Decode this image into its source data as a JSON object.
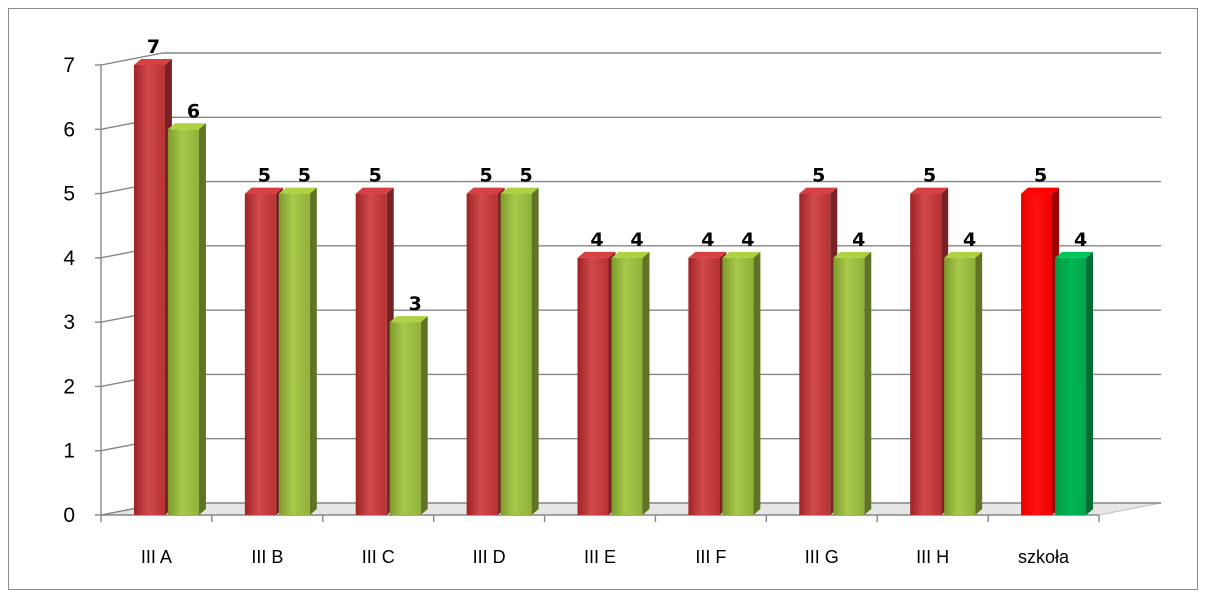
{
  "chart_data": {
    "type": "bar",
    "title": "",
    "xlabel": "",
    "ylabel": "",
    "ylim": [
      0,
      7
    ],
    "yticks": [
      "0",
      "1",
      "2",
      "3",
      "4",
      "5",
      "6",
      "7"
    ],
    "grid": true,
    "legend": "none",
    "three_d": true,
    "categories": [
      "III A",
      "III B",
      "III C",
      "III D",
      "III E",
      "III F",
      "III G",
      "III H",
      "szkoła"
    ],
    "series": [
      {
        "values": [
          7,
          5,
          5,
          5,
          4,
          4,
          5,
          5,
          5
        ],
        "color": "#c0393b",
        "highlight_color": "#ff0000"
      },
      {
        "values": [
          6,
          5,
          3,
          5,
          4,
          4,
          4,
          4,
          4
        ],
        "color": "#9bbb3b",
        "highlight_color": "#00b050"
      }
    ],
    "data_labels": [
      [
        "7",
        "5",
        "5",
        "5",
        "4",
        "4",
        "5",
        "5",
        "5"
      ],
      [
        "6",
        "5",
        "3",
        "5",
        "4",
        "4",
        "4",
        "4",
        "4"
      ]
    ],
    "highlight_category": "szkoła"
  }
}
